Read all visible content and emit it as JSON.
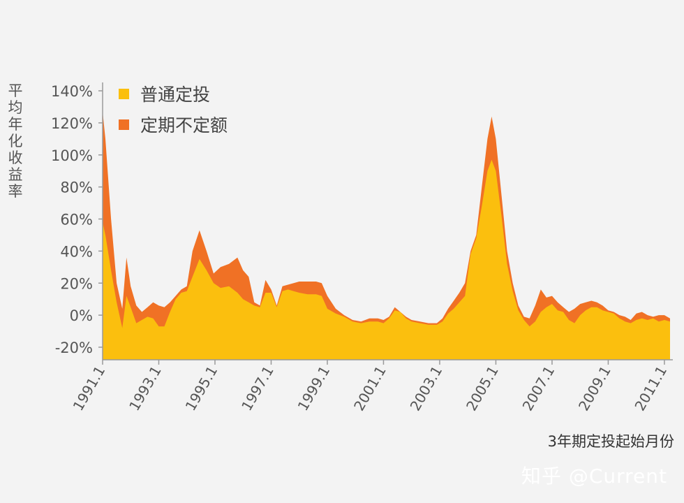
{
  "chart_data": {
    "type": "area",
    "ylabel": "平均年化收益率",
    "xlabel": "3年期定投起始月份",
    "ylim": [
      -25,
      140
    ],
    "xlim": [
      1991.0,
      2011.3
    ],
    "ytick_values": [
      -20,
      0,
      20,
      40,
      60,
      80,
      100,
      120,
      140
    ],
    "ytick_labels": [
      "-20%",
      "0%",
      "20%",
      "40%",
      "60%",
      "80%",
      "100%",
      "120%",
      "140%"
    ],
    "xtick_values": [
      1991.0,
      1993.0,
      1995.0,
      1997.0,
      1999.0,
      2001.0,
      2003.0,
      2005.0,
      2007.0,
      2009.0,
      2011.0
    ],
    "xtick_labels": [
      "1991.1",
      "1993.1",
      "1995.1",
      "1997.1",
      "1999.1",
      "2001.1",
      "2003.1",
      "2005.1",
      "2007.1",
      "2009.1",
      "2011.1"
    ],
    "grid": false,
    "legend_position": "top-left",
    "series": [
      {
        "name": "普通定投",
        "color": "#fbbf0e",
        "x": [
          1991.0,
          1991.1,
          1991.3,
          1991.5,
          1991.7,
          1991.85,
          1992.0,
          1992.2,
          1992.4,
          1992.6,
          1992.8,
          1993.0,
          1993.2,
          1993.4,
          1993.6,
          1993.8,
          1994.0,
          1994.2,
          1994.45,
          1994.7,
          1994.95,
          1995.2,
          1995.5,
          1995.8,
          1996.0,
          1996.2,
          1996.4,
          1996.6,
          1996.8,
          1997.0,
          1997.2,
          1997.4,
          1997.6,
          1997.8,
          1998.0,
          1998.3,
          1998.6,
          1998.8,
          1999.0,
          1999.3,
          1999.6,
          1999.9,
          2000.2,
          2000.5,
          2000.8,
          2001.0,
          2001.2,
          2001.4,
          2001.6,
          2001.8,
          2002.0,
          2002.3,
          2002.6,
          2002.9,
          2003.1,
          2003.3,
          2003.5,
          2003.7,
          2003.9,
          2004.1,
          2004.3,
          2004.5,
          2004.7,
          2004.85,
          2005.0,
          2005.2,
          2005.4,
          2005.6,
          2005.8,
          2006.0,
          2006.2,
          2006.4,
          2006.6,
          2006.8,
          2007.0,
          2007.2,
          2007.4,
          2007.6,
          2007.8,
          2008.0,
          2008.2,
          2008.4,
          2008.6,
          2008.8,
          2009.0,
          2009.2,
          2009.4,
          2009.6,
          2009.8,
          2010.0,
          2010.2,
          2010.4,
          2010.6,
          2010.8,
          2011.0,
          2011.2
        ],
        "values": [
          58,
          50,
          28,
          8,
          -8,
          12,
          5,
          -5,
          -3,
          -1,
          -2,
          -7,
          -7,
          2,
          10,
          14,
          15,
          24,
          35,
          28,
          20,
          17,
          18,
          14,
          10,
          8,
          6,
          5,
          14,
          14,
          5,
          15,
          16,
          15,
          14,
          13,
          13,
          12,
          4,
          1,
          -1,
          -4,
          -5,
          -4,
          -4,
          -5,
          -2,
          3,
          2,
          -2,
          -4,
          -5,
          -6,
          -6,
          -4,
          1,
          4,
          8,
          12,
          38,
          48,
          68,
          90,
          97,
          90,
          62,
          32,
          15,
          3,
          -3,
          -7,
          -4,
          2,
          5,
          7,
          3,
          2,
          -3,
          -5,
          0,
          3,
          5,
          5,
          3,
          2,
          1,
          -2,
          -4,
          -5,
          -3,
          -2,
          -3,
          -2,
          -4,
          -3,
          -4
        ]
      },
      {
        "name": "定期不定额",
        "color": "#f07125",
        "x": [
          1991.0,
          1991.1,
          1991.3,
          1991.5,
          1991.7,
          1991.85,
          1992.0,
          1992.2,
          1992.4,
          1992.6,
          1992.8,
          1993.0,
          1993.2,
          1993.4,
          1993.6,
          1993.8,
          1994.0,
          1994.2,
          1994.45,
          1994.7,
          1994.95,
          1995.2,
          1995.5,
          1995.8,
          1996.0,
          1996.2,
          1996.4,
          1996.6,
          1996.8,
          1997.0,
          1997.2,
          1997.4,
          1997.6,
          1997.8,
          1998.0,
          1998.3,
          1998.6,
          1998.8,
          1999.0,
          1999.3,
          1999.6,
          1999.9,
          2000.2,
          2000.5,
          2000.8,
          2001.0,
          2001.2,
          2001.4,
          2001.6,
          2001.8,
          2002.0,
          2002.3,
          2002.6,
          2002.9,
          2003.1,
          2003.3,
          2003.5,
          2003.7,
          2003.9,
          2004.1,
          2004.3,
          2004.5,
          2004.7,
          2004.85,
          2005.0,
          2005.2,
          2005.4,
          2005.6,
          2005.8,
          2006.0,
          2006.2,
          2006.4,
          2006.6,
          2006.8,
          2007.0,
          2007.2,
          2007.4,
          2007.6,
          2007.8,
          2008.0,
          2008.2,
          2008.4,
          2008.6,
          2008.8,
          2009.0,
          2009.2,
          2009.4,
          2009.6,
          2009.8,
          2010.0,
          2010.2,
          2010.4,
          2010.6,
          2010.8,
          2011.0,
          2011.2
        ],
        "values": [
          127,
          110,
          60,
          20,
          4,
          36,
          18,
          6,
          2,
          5,
          8,
          6,
          5,
          8,
          12,
          16,
          18,
          40,
          53,
          40,
          26,
          30,
          32,
          36,
          28,
          24,
          8,
          6,
          22,
          16,
          6,
          18,
          19,
          20,
          21,
          21,
          21,
          20,
          12,
          4,
          0,
          -3,
          -4,
          -2,
          -2,
          -3,
          -1,
          5,
          2,
          -1,
          -3,
          -4,
          -5,
          -5,
          -2,
          4,
          9,
          14,
          20,
          40,
          50,
          80,
          110,
          124,
          110,
          75,
          40,
          20,
          6,
          -1,
          -2,
          6,
          16,
          11,
          12,
          8,
          5,
          2,
          4,
          7,
          8,
          9,
          8,
          6,
          3,
          2,
          0,
          -1,
          -3,
          1,
          2,
          0,
          -1,
          0,
          0,
          -2
        ]
      }
    ]
  },
  "legend": {
    "items": [
      {
        "label": "普通定投",
        "color": "#fbbf0e"
      },
      {
        "label": "定期不定额",
        "color": "#f07125"
      }
    ]
  },
  "watermark": "知乎 @Current"
}
